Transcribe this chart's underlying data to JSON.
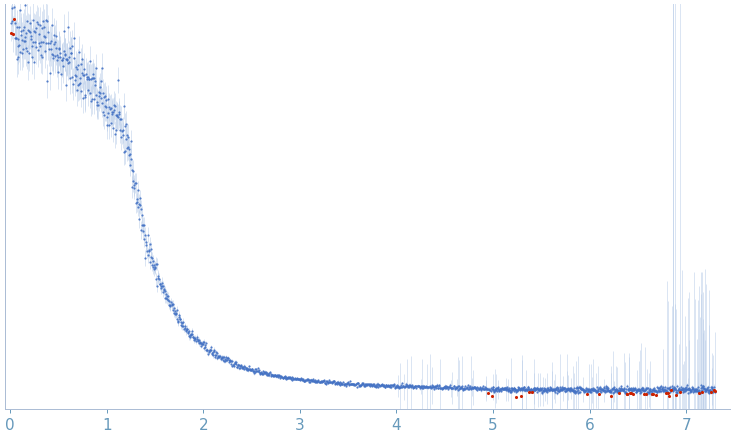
{
  "xlim": [
    -0.05,
    7.45
  ],
  "bg_color": "#ffffff",
  "dot_color_blue": "#4472c4",
  "dot_color_red": "#cc2200",
  "errorbar_color": "#b8cce8",
  "dot_size": 2.5,
  "seed": 42,
  "figsize": [
    7.34,
    4.37
  ],
  "dpi": 100,
  "spine_color": "#aabbd4",
  "tick_color": "#6699bb",
  "tick_label_fontsize": 11
}
